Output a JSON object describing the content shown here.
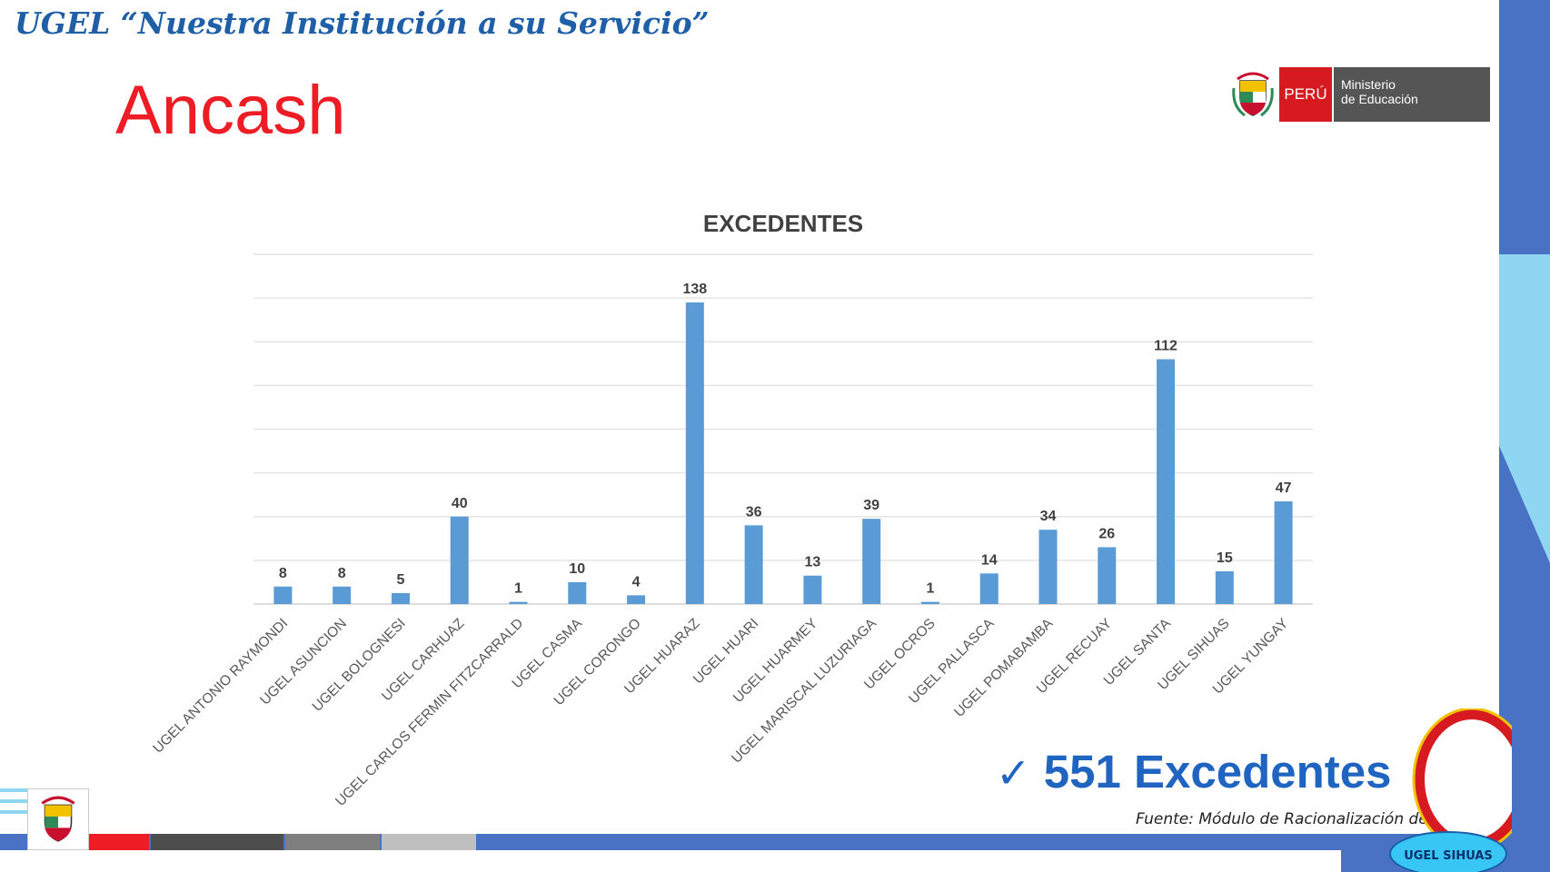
{
  "slide": {
    "header_title": "UGEL “Nuestra Institución a su Servicio”",
    "region_title": "Ancash",
    "logo": {
      "country": "PERÚ",
      "ministry_line1": "Ministerio",
      "ministry_line2": "de Educación"
    },
    "total": {
      "check_icon": "✓",
      "text": "551 Excedentes"
    },
    "source": "Fuente: Módulo de Racionalización de Plazas",
    "badge_text": "UGEL SIHUAS",
    "colors": {
      "header": "#1f5fa8",
      "region_title": "#ee1c25",
      "bar": "#5b9bd5",
      "band": "#4a72c4",
      "light_band": "#8fd6f3",
      "total": "#1f64c0"
    }
  },
  "chart_data": {
    "type": "bar",
    "title": "EXCEDENTES",
    "xlabel": "",
    "ylabel": "",
    "ylim": [
      0,
      160
    ],
    "grid": true,
    "categories": [
      "UGEL ANTONIO RAYMONDI",
      "UGEL ASUNCION",
      "UGEL BOLOGNESI",
      "UGEL CARHUAZ",
      "UGEL CARLOS FERMIN FITZCARRALD",
      "UGEL CASMA",
      "UGEL CORONGO",
      "UGEL HUARAZ",
      "UGEL HUARI",
      "UGEL HUARMEY",
      "UGEL MARISCAL LUZURIAGA",
      "UGEL OCROS",
      "UGEL PALLASCA",
      "UGEL POMABAMBA",
      "UGEL RECUAY",
      "UGEL SANTA",
      "UGEL SIHUAS",
      "UGEL YUNGAY"
    ],
    "values": [
      8,
      8,
      5,
      40,
      1,
      10,
      4,
      138,
      36,
      13,
      39,
      1,
      14,
      34,
      26,
      112,
      15,
      47
    ]
  }
}
